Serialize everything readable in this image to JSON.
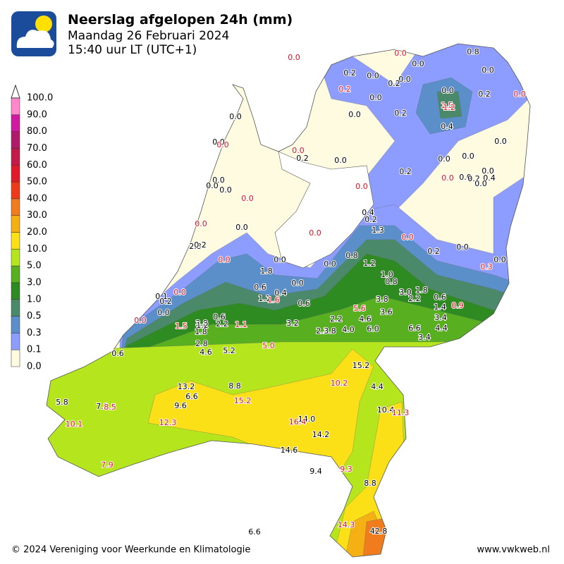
{
  "header": {
    "title": "Neerslag afgelopen 24h (mm)",
    "subtitle": "Maandag 26 Februari 2024",
    "time": "15:40 uur LT (UTC+1)"
  },
  "legend": {
    "labels": [
      "0.0",
      "0.1",
      "0.3",
      "0.5",
      "1.0",
      "3.0",
      "5.0",
      "10.0",
      "20.0",
      "30.0",
      "40.0",
      "50.0",
      "60.0",
      "70.0",
      "80.0",
      "90.0",
      "100.0"
    ],
    "colors": [
      "#fffbe0",
      "#8c9cff",
      "#5b8fc9",
      "#4a8a6a",
      "#2e8b22",
      "#58b020",
      "#b5e61d",
      "#fbe017",
      "#f5b014",
      "#f07c1e",
      "#ee3a1a",
      "#e01a2a",
      "#c21a4a",
      "#b01a6a",
      "#d01aa0",
      "#ff88cc"
    ]
  },
  "stations": [
    "0.0",
    "0.0",
    "0.8",
    "0.0",
    "0.2",
    "0.0",
    "0.0",
    "0.2",
    "0.0",
    "0.2",
    "0.0",
    "0.0",
    "1.5",
    "0.2",
    "0.0",
    "1.2",
    "0.0",
    "0.2",
    "0.0",
    "0.4",
    "0.0",
    "0.0",
    "0.0",
    "0.0",
    "0.2",
    "0.0",
    "0.0",
    "0.0",
    "0.2",
    "0.0",
    "0.0",
    "0.0",
    "0.2",
    "0.4",
    "0.0",
    "0.0",
    "0.0",
    "0.0",
    "0.0",
    "0.0",
    "0.4",
    "0.2",
    "0.0",
    "0.0",
    "0.0",
    "1.3",
    "0.0",
    "2.8",
    "0.2",
    "0.2",
    "0.0",
    "0.0",
    "0.8",
    "1.2",
    "0.0",
    "0.0",
    "0.3",
    "0.0",
    "1.8",
    "1.0",
    "0.8",
    "0.0",
    "0.6",
    "0.4",
    "3.0",
    "1.8",
    "0.1",
    "0.0",
    "0.2",
    "1.1",
    "1.6",
    "0.6",
    "3.8",
    "2.2",
    "0.6",
    "0.0",
    "1.4",
    "0.9",
    "5.6",
    "3.6",
    "0.0",
    "0.6",
    "3.8",
    "1.2",
    "2.2",
    "1.1",
    "1.5",
    "1.8",
    "3.2",
    "2.2",
    "4.6",
    "3.4",
    "2.3",
    "3.8",
    "4.0",
    "6.0",
    "6.6",
    "4.4",
    "3.4",
    "2.8",
    "5.0",
    "4.6",
    "5.2",
    "0.6",
    "15.2",
    "10.2",
    "13.2",
    "8.8",
    "4.4",
    "6.6",
    "15.2",
    "5.8",
    "7.3",
    "8.5",
    "9.6",
    "10.4",
    "11.3",
    "14.0",
    "16.4",
    "12.3",
    "10.1",
    "14.2",
    "14.6",
    "7.9",
    "9.4",
    "9.3",
    "8.8",
    "14.3",
    "42.8",
    "6.6"
  ],
  "footer": {
    "copyright": "© 2024 Vereniging voor Weerkunde en Klimatologie",
    "site": "www.vwkweb.nl"
  }
}
